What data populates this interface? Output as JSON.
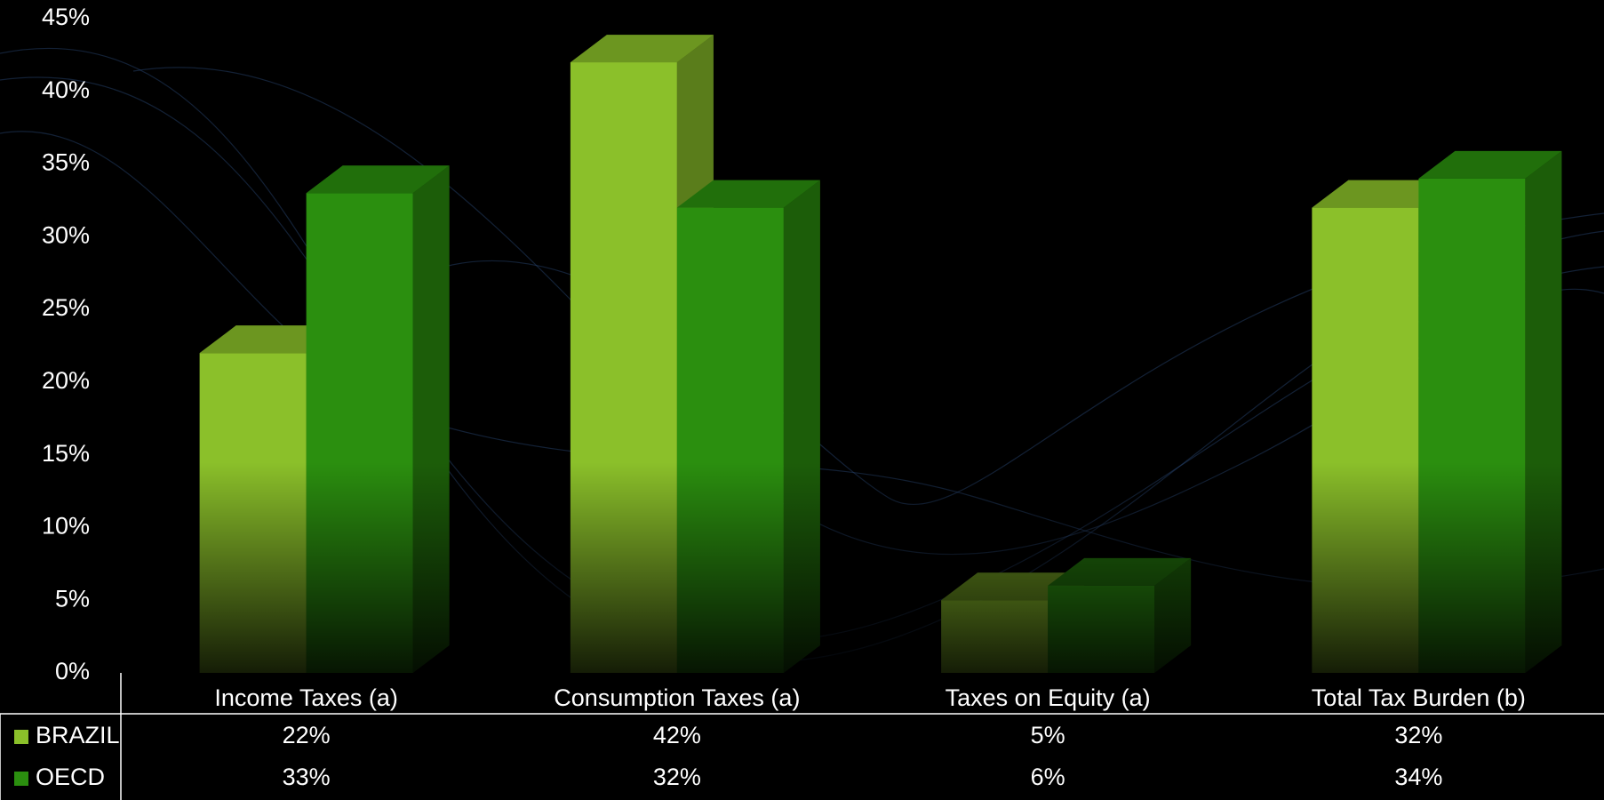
{
  "chart_data": {
    "type": "bar3d",
    "categories": [
      "Income Taxes (a)",
      "Consumption Taxes (a)",
      "Taxes on Equity (a)",
      "Total Tax Burden (b)"
    ],
    "series": [
      {
        "name": "BRAZIL",
        "color": "#8bc02a",
        "values": [
          22,
          42,
          5,
          32
        ],
        "value_labels": [
          "22%",
          "42%",
          "5%",
          "32%"
        ]
      },
      {
        "name": "OECD",
        "color": "#2b8f0f",
        "values": [
          33,
          32,
          6,
          34
        ],
        "value_labels": [
          "33%",
          "32%",
          "6%",
          "34%"
        ]
      }
    ],
    "ylim": [
      0,
      45
    ],
    "yticks": [
      {
        "value": 0,
        "label": "0%"
      },
      {
        "value": 5,
        "label": "5%"
      },
      {
        "value": 10,
        "label": "10%"
      },
      {
        "value": 15,
        "label": "15%"
      },
      {
        "value": 20,
        "label": "20%"
      },
      {
        "value": 25,
        "label": "25%"
      },
      {
        "value": 30,
        "label": "30%"
      },
      {
        "value": 35,
        "label": "35%"
      },
      {
        "value": 40,
        "label": "40%"
      },
      {
        "value": 45,
        "label": "45%"
      }
    ]
  }
}
